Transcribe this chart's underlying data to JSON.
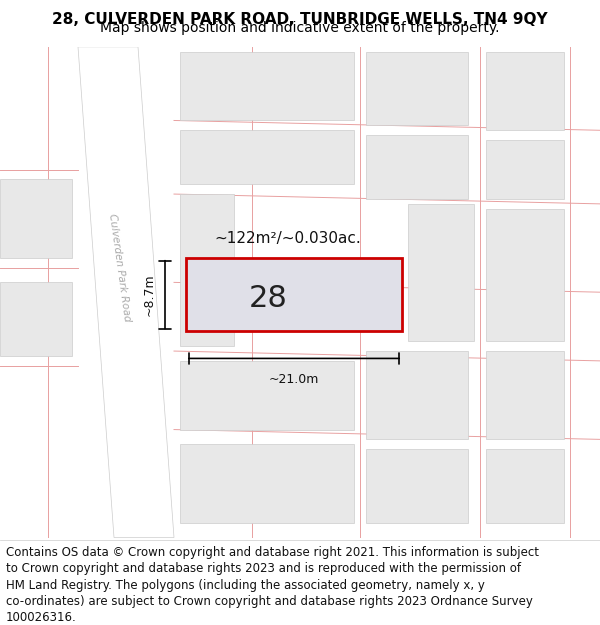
{
  "title_line1": "28, CULVERDEN PARK ROAD, TUNBRIDGE WELLS, TN4 9QY",
  "title_line2": "Map shows position and indicative extent of the property.",
  "map_bg": "#f0f0f0",
  "road_color": "#ffffff",
  "block_fill": "#e8e8e8",
  "block_edge": "#cccccc",
  "red_line_color": "#e8a0a0",
  "highlight_fill": "#e0e0e8",
  "highlight_edge": "#cc0000",
  "label_28": "28",
  "area_label": "~122m²/~0.030ac.",
  "dim_h": "~8.7m",
  "dim_w": "~21.0m",
  "road_label": "Culverden Park Road",
  "title_fontsize": 11,
  "subtitle_fontsize": 10,
  "footer_fontsize": 8.5,
  "footer_lines": [
    "Contains OS data © Crown copyright and database right 2021. This information is subject",
    "to Crown copyright and database rights 2023 and is reproduced with the permission of",
    "HM Land Registry. The polygons (including the associated geometry, namely x, y",
    "co-ordinates) are subject to Crown copyright and database rights 2023 Ordnance Survey",
    "100026316."
  ]
}
